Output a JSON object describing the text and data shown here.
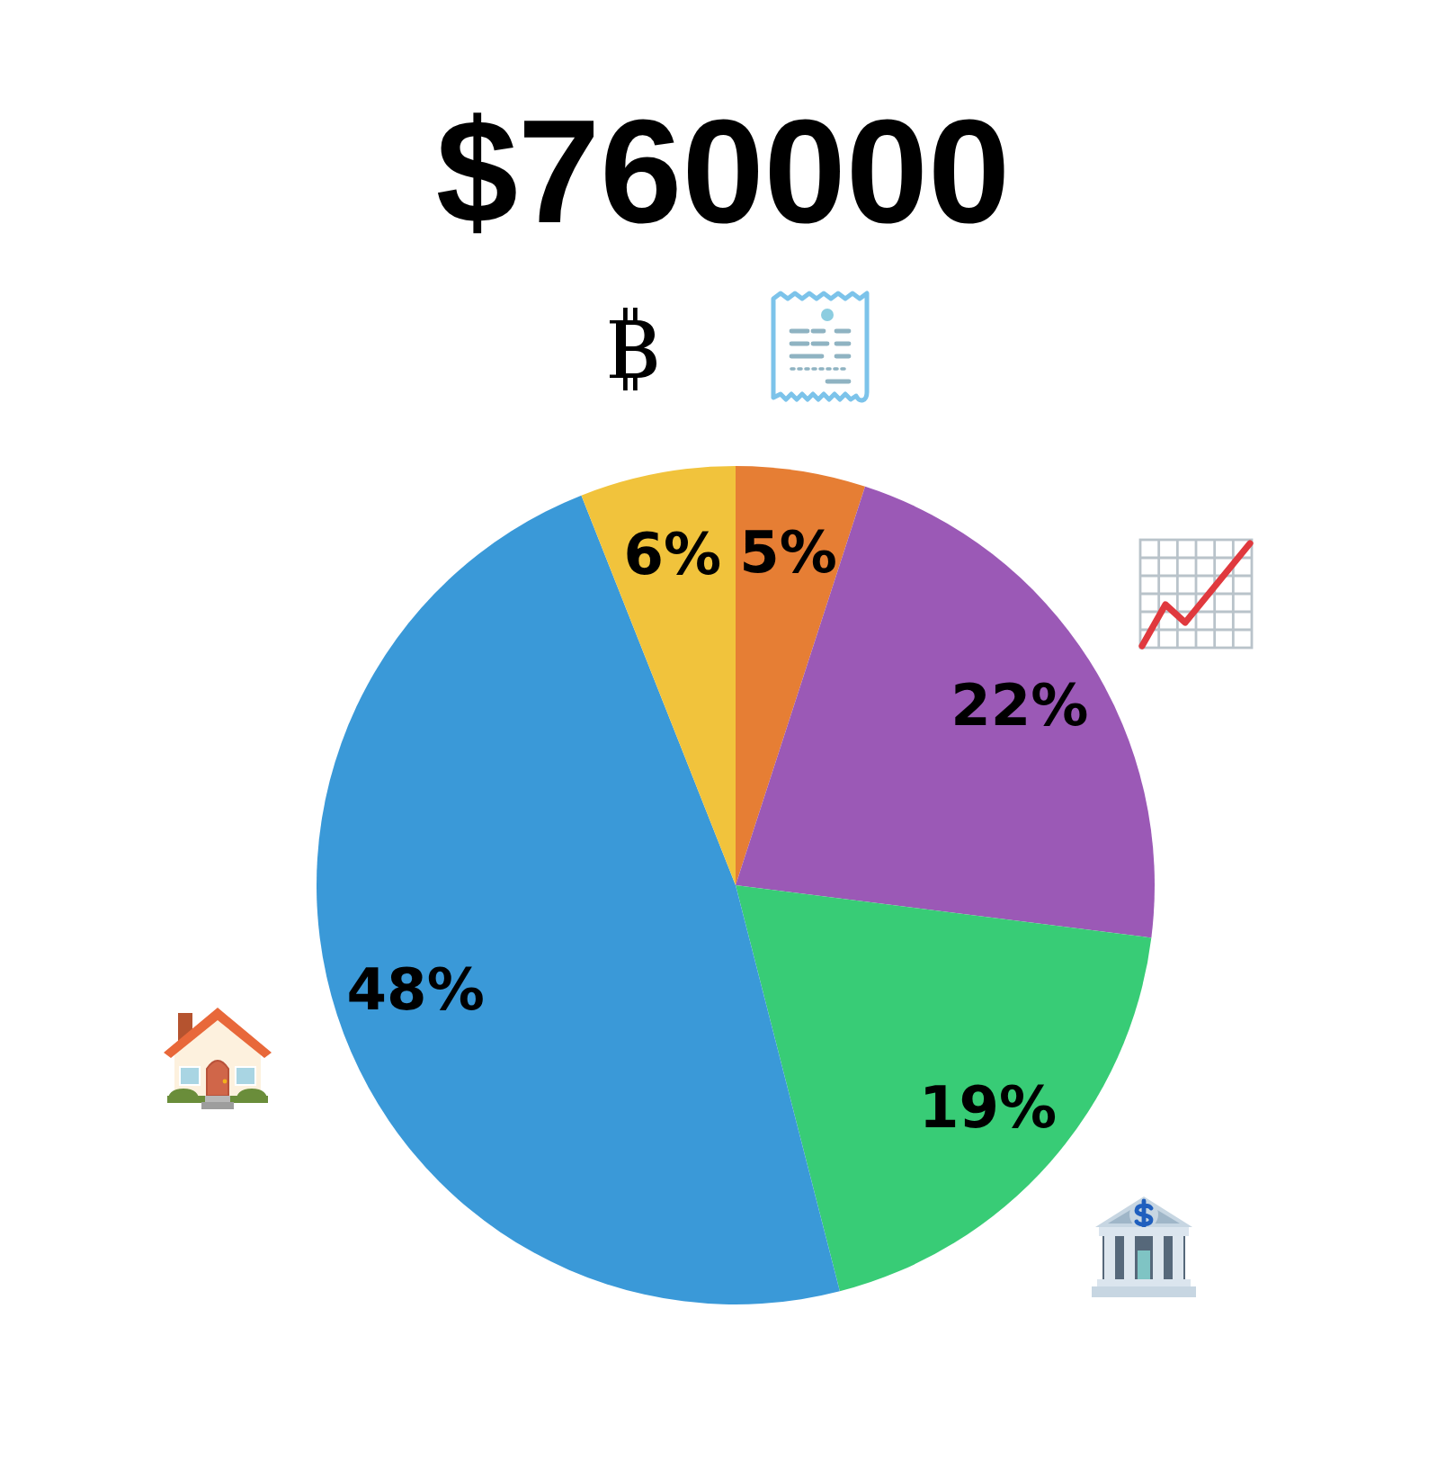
{
  "chart_data": {
    "type": "pie",
    "title": "$760000",
    "categories": [
      null,
      null,
      null,
      null,
      null
    ],
    "values": [
      5,
      22,
      19,
      48,
      6
    ],
    "colors": [
      "#e67e34",
      "#9b59b6",
      "#38cc76",
      "#3a99d8",
      "#f1c33c"
    ],
    "value_labels": [
      "5%",
      "22%",
      "19%",
      "48%",
      "6%"
    ]
  }
}
